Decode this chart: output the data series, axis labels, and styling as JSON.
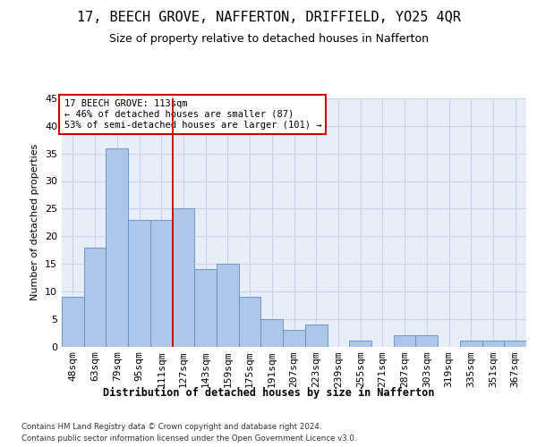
{
  "title": "17, BEECH GROVE, NAFFERTON, DRIFFIELD, YO25 4QR",
  "subtitle": "Size of property relative to detached houses in Nafferton",
  "xlabel": "Distribution of detached houses by size in Nafferton",
  "ylabel": "Number of detached properties",
  "categories": [
    "48sqm",
    "63sqm",
    "79sqm",
    "95sqm",
    "111sqm",
    "127sqm",
    "143sqm",
    "159sqm",
    "175sqm",
    "191sqm",
    "207sqm",
    "223sqm",
    "239sqm",
    "255sqm",
    "271sqm",
    "287sqm",
    "303sqm",
    "319sqm",
    "335sqm",
    "351sqm",
    "367sqm"
  ],
  "values": [
    9,
    18,
    36,
    23,
    23,
    25,
    14,
    15,
    9,
    5,
    3,
    4,
    0,
    1,
    0,
    2,
    2,
    0,
    1,
    1,
    1
  ],
  "bar_color": "#aec6e8",
  "bar_edge_color": "#5b8dc8",
  "grid_color": "#c8d4e8",
  "background_color": "#e8eef8",
  "property_line_x": 4.5,
  "property_line_color": "#cc0000",
  "annotation_text": "17 BEECH GROVE: 113sqm\n← 46% of detached houses are smaller (87)\n53% of semi-detached houses are larger (101) →",
  "annotation_box_color": "#cc0000",
  "ylim": [
    0,
    45
  ],
  "yticks": [
    0,
    5,
    10,
    15,
    20,
    25,
    30,
    35,
    40,
    45
  ],
  "footer_line1": "Contains HM Land Registry data © Crown copyright and database right 2024.",
  "footer_line2": "Contains public sector information licensed under the Open Government Licence v3.0."
}
